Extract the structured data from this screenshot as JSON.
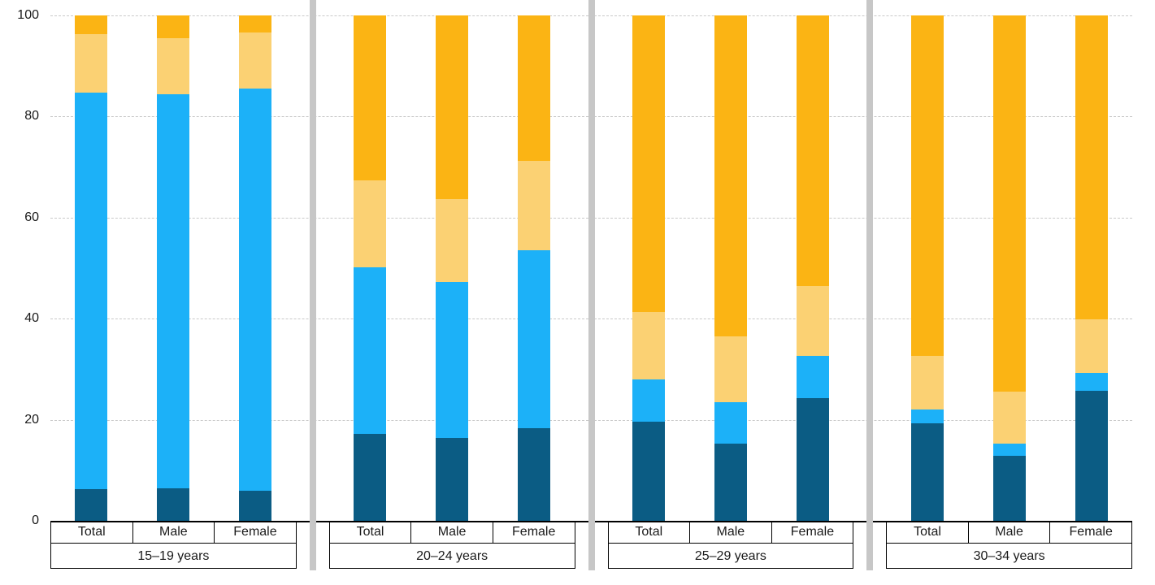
{
  "chart_data": {
    "type": "bar",
    "variant": "stacked-100-percent-vertical",
    "title": "",
    "xlabel": "",
    "ylabel": "",
    "unit": "percent",
    "ylim": [
      0,
      100
    ],
    "yticks": [
      0,
      20,
      40,
      60,
      80,
      100
    ],
    "grid": "horizontal dashed gridlines at 20/40/60/80/100, solid black baseline at 0",
    "legend_position": "none visible in image",
    "categories_per_group": [
      "Total",
      "Male",
      "Female"
    ],
    "series": [
      {
        "name": "dark-blue",
        "color": "#0B5C84"
      },
      {
        "name": "light-blue",
        "color": "#1CB1F8"
      },
      {
        "name": "light-orange",
        "color": "#FBD173"
      },
      {
        "name": "orange",
        "color": "#FBB414"
      }
    ],
    "groups": [
      {
        "label": "15–19 years",
        "bars": [
          {
            "label": "Total",
            "segments": [
              6.2,
              78.6,
              11.5,
              3.7
            ]
          },
          {
            "label": "Male",
            "segments": [
              6.5,
              77.9,
              11.1,
              4.5
            ]
          },
          {
            "label": "Female",
            "segments": [
              6.0,
              79.6,
              11.1,
              3.3
            ]
          }
        ]
      },
      {
        "label": "20–24 years",
        "bars": [
          {
            "label": "Total",
            "segments": [
              17.2,
              33.0,
              17.1,
              32.7
            ]
          },
          {
            "label": "Male",
            "segments": [
              16.4,
              30.9,
              16.3,
              36.4
            ]
          },
          {
            "label": "Female",
            "segments": [
              18.3,
              35.2,
              17.8,
              28.7
            ]
          }
        ]
      },
      {
        "label": "25–29 years",
        "bars": [
          {
            "label": "Total",
            "segments": [
              19.6,
              8.3,
              13.5,
              58.6
            ]
          },
          {
            "label": "Male",
            "segments": [
              15.2,
              8.2,
              13.1,
              63.5
            ]
          },
          {
            "label": "Female",
            "segments": [
              24.3,
              8.4,
              13.8,
              53.5
            ]
          }
        ]
      },
      {
        "label": "30–34 years",
        "bars": [
          {
            "label": "Total",
            "segments": [
              19.3,
              2.8,
              10.6,
              67.3
            ]
          },
          {
            "label": "Male",
            "segments": [
              12.9,
              2.4,
              10.3,
              74.4
            ]
          },
          {
            "label": "Female",
            "segments": [
              25.7,
              3.5,
              10.6,
              60.2
            ]
          }
        ]
      }
    ],
    "separator_color": "#C7C7C7",
    "gridline_color": "#C9C9C9",
    "axis_line_color": "#000000"
  }
}
